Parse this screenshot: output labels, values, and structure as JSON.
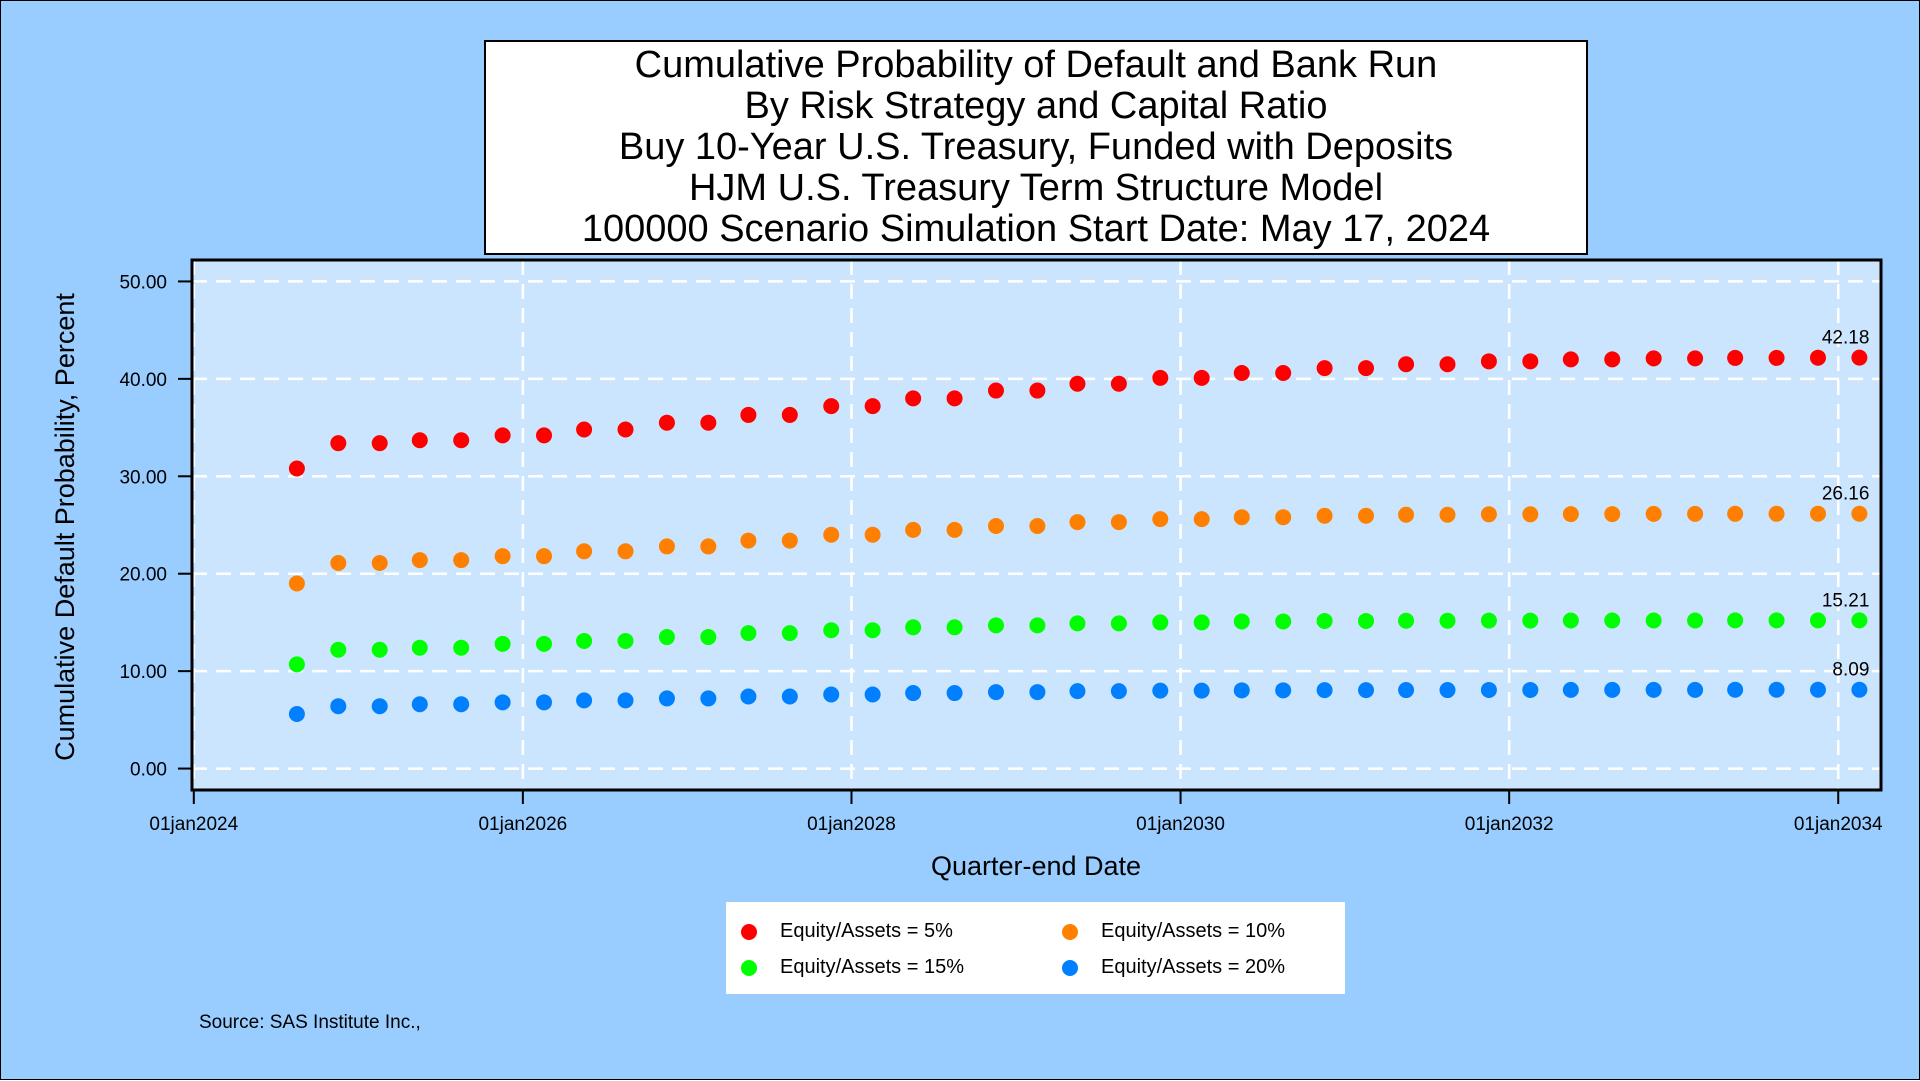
{
  "title_lines": [
    "Cumulative Probability of Default and Bank Run",
    "By Risk Strategy and Capital Ratio",
    "Buy 10-Year U.S. Treasury, Funded with Deposits",
    "HJM U.S. Treasury Term Structure Model",
    "100000 Scenario Simulation Start Date: May 17, 2024"
  ],
  "source": "Source: SAS Institute Inc.,",
  "colors": {
    "background": "#99CCFF",
    "plot_background": "#CCE5FF",
    "gridline": "#FFFFFF"
  },
  "chart_data": {
    "type": "scatter",
    "xlabel": "Quarter-end Date",
    "ylabel": "Cumulative Default Probability, Percent",
    "x_ticks": [
      "01jan2024",
      "01jan2026",
      "01jan2028",
      "01jan2030",
      "01jan2032",
      "01jan2034"
    ],
    "x_tick_dates": [
      "2024-01-01",
      "2026-01-01",
      "2028-01-01",
      "2030-01-01",
      "2032-01-01",
      "2034-01-01"
    ],
    "xlim": [
      "2023-12-28",
      "2034-04-06"
    ],
    "y_ticks": [
      "0.00",
      "10.00",
      "20.00",
      "30.00",
      "40.00",
      "50.00"
    ],
    "ylim": [
      -2.2,
      52.2
    ],
    "grid": true,
    "legend_position": "bottom",
    "x": [
      "2024-08-17",
      "2024-11-17",
      "2025-02-17",
      "2025-05-17",
      "2025-08-17",
      "2025-11-17",
      "2026-02-17",
      "2026-05-17",
      "2026-08-17",
      "2026-11-17",
      "2027-02-17",
      "2027-05-17",
      "2027-08-17",
      "2027-11-17",
      "2028-02-17",
      "2028-05-17",
      "2028-08-17",
      "2028-11-17",
      "2029-02-17",
      "2029-05-17",
      "2029-08-17",
      "2029-11-17",
      "2030-02-17",
      "2030-05-17",
      "2030-08-17",
      "2030-11-17",
      "2031-02-17",
      "2031-05-17",
      "2031-08-17",
      "2031-11-17",
      "2032-02-17",
      "2032-05-17",
      "2032-08-17",
      "2032-11-17",
      "2033-02-17",
      "2033-05-17",
      "2033-08-17",
      "2033-11-17",
      "2034-02-17"
    ],
    "series": [
      {
        "name": "Equity/Assets = 5%",
        "color": "#FF0000",
        "end_label": "42.18",
        "values": [
          30.8,
          33.4,
          33.4,
          33.7,
          33.7,
          34.2,
          34.2,
          34.8,
          34.8,
          35.5,
          35.5,
          36.3,
          36.3,
          37.2,
          37.2,
          38.0,
          38.0,
          38.8,
          38.8,
          39.5,
          39.5,
          40.1,
          40.1,
          40.6,
          40.6,
          41.1,
          41.1,
          41.5,
          41.5,
          41.8,
          41.8,
          42.0,
          42.0,
          42.1,
          42.1,
          42.15,
          42.15,
          42.17,
          42.18
        ]
      },
      {
        "name": "Equity/Assets = 10%",
        "color": "#FF8000",
        "end_label": "26.16",
        "values": [
          19.0,
          21.1,
          21.1,
          21.4,
          21.4,
          21.8,
          21.8,
          22.3,
          22.3,
          22.8,
          22.8,
          23.4,
          23.4,
          24.0,
          24.0,
          24.5,
          24.5,
          24.9,
          24.9,
          25.3,
          25.3,
          25.6,
          25.6,
          25.8,
          25.8,
          25.95,
          25.95,
          26.05,
          26.05,
          26.1,
          26.1,
          26.12,
          26.12,
          26.14,
          26.14,
          26.15,
          26.15,
          26.16,
          26.16
        ]
      },
      {
        "name": "Equity/Assets = 15%",
        "color": "#00FF00",
        "end_label": "15.21",
        "values": [
          10.7,
          12.2,
          12.2,
          12.4,
          12.4,
          12.8,
          12.8,
          13.1,
          13.1,
          13.5,
          13.5,
          13.9,
          13.9,
          14.2,
          14.2,
          14.5,
          14.5,
          14.7,
          14.7,
          14.9,
          14.9,
          15.0,
          15.0,
          15.1,
          15.1,
          15.15,
          15.15,
          15.17,
          15.17,
          15.19,
          15.19,
          15.2,
          15.2,
          15.2,
          15.2,
          15.21,
          15.21,
          15.21,
          15.21
        ]
      },
      {
        "name": "Equity/Assets = 20%",
        "color": "#0080FF",
        "end_label": "8.09",
        "values": [
          5.6,
          6.4,
          6.4,
          6.6,
          6.6,
          6.8,
          6.8,
          7.0,
          7.0,
          7.2,
          7.2,
          7.4,
          7.4,
          7.6,
          7.6,
          7.75,
          7.75,
          7.85,
          7.85,
          7.95,
          7.95,
          8.0,
          8.0,
          8.03,
          8.03,
          8.05,
          8.05,
          8.06,
          8.06,
          8.07,
          8.07,
          8.08,
          8.08,
          8.08,
          8.08,
          8.09,
          8.09,
          8.09,
          8.09
        ]
      }
    ]
  }
}
